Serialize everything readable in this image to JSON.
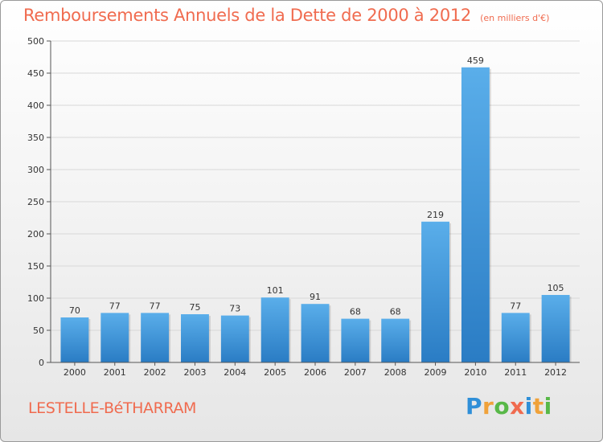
{
  "chart_data": {
    "type": "bar",
    "title": "Remboursements Annuels de la Dette de 2000 à 2012",
    "unit_label": "(en milliers d'€)",
    "categories": [
      "2000",
      "2001",
      "2002",
      "2003",
      "2004",
      "2005",
      "2006",
      "2007",
      "2008",
      "2009",
      "2010",
      "2011",
      "2012"
    ],
    "values": [
      70,
      77,
      77,
      75,
      73,
      101,
      91,
      68,
      68,
      219,
      459,
      77,
      105
    ],
    "ylim": [
      0,
      500
    ],
    "yticks": [
      0,
      50,
      100,
      150,
      200,
      250,
      300,
      350,
      400,
      450,
      500
    ],
    "grid": true,
    "xlabel": "",
    "ylabel": "",
    "bar_color": "#3a8fd6",
    "title_color": "#f06b4f"
  },
  "footer": {
    "location": "LESTELLE-BéTHARRAM"
  },
  "brand": {
    "name": "Proxiti",
    "letters": [
      "P",
      "r",
      "o",
      "x",
      "i",
      "t",
      "i"
    ],
    "letter_colors": [
      "#2f8fd8",
      "#f0a23a",
      "#58b848",
      "#f06b4f",
      "#2f8fd8",
      "#f0a23a",
      "#58b848"
    ]
  }
}
